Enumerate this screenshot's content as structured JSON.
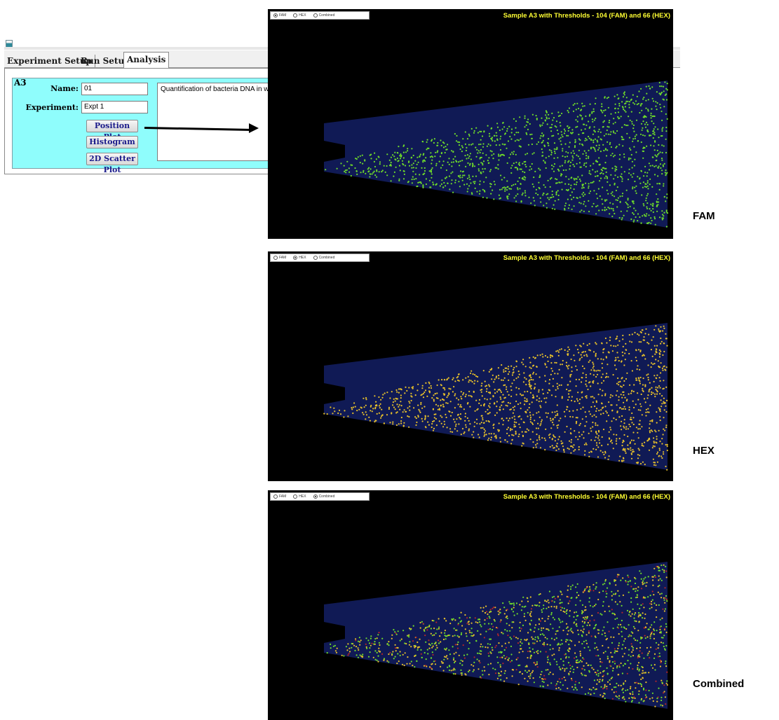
{
  "tabs": [
    {
      "label": "Experiment Setup",
      "active": false
    },
    {
      "label": "Run Setup",
      "active": false
    },
    {
      "label": "Analysis",
      "active": true
    }
  ],
  "sample": {
    "well": "A3",
    "name_label": "Name:",
    "name_value": "01",
    "experiment_label": "Experiment:",
    "experiment_value": "Expt 1",
    "description": "Quantification of bacteria DNA in w"
  },
  "buttons": {
    "position_plot": "Position Plot",
    "histogram": "Histogram",
    "scatter_2d": "2D Scatter Plot"
  },
  "plot_options": [
    "FAM",
    "HEX",
    "Combined"
  ],
  "plots": [
    {
      "title": "Sample A3 with Thresholds - 104 (FAM) and 66 (HEX)",
      "selected": "FAM",
      "label": "FAM"
    },
    {
      "title": "Sample A3 with Thresholds - 104 (FAM) and 66 (HEX)",
      "selected": "HEX",
      "label": "HEX"
    },
    {
      "title": "Sample A3 with Thresholds - 104 (FAM) and 66 (HEX)",
      "selected": "Combined",
      "label": "Combined"
    }
  ],
  "colors": {
    "panel_bg": "#8ffdfc",
    "chip_region": "#101a55",
    "fam_positive": "#6fdc2a",
    "hex_positive": "#e8c12a",
    "double_positive": "#b3262a",
    "title": "#ffff33"
  }
}
